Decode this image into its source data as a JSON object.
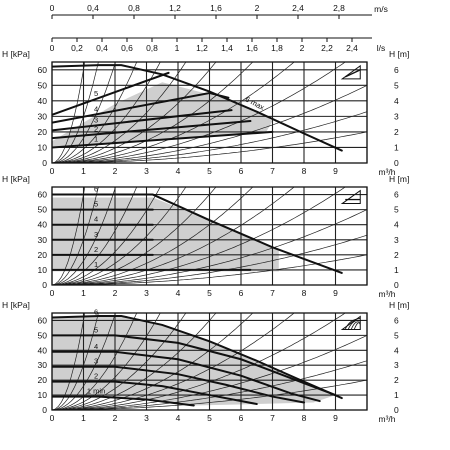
{
  "chart_data": [
    {
      "type": "line",
      "panel": "top",
      "title": "",
      "mode_icon": "proportional-pressure-icon",
      "xlabel": "m³/h",
      "ylabel_left": "H [kPa]",
      "ylabel_right": "H [m]",
      "top_axis_1_label": "m/s",
      "top_axis_1_ticks": [
        "0",
        "0,4",
        "0,8",
        "1,2",
        "1,6",
        "2",
        "2,4",
        "2,8"
      ],
      "top_axis_2_label": "l/s",
      "top_axis_2_ticks": [
        "0",
        "0,2",
        "0,4",
        "0,6",
        "0,8",
        "1",
        "1,2",
        "1,4",
        "1,6",
        "1,8",
        "2",
        "2,2",
        "2,4"
      ],
      "x_ticks": [
        "0",
        "1",
        "2",
        "3",
        "4",
        "5",
        "6",
        "7",
        "8",
        "9"
      ],
      "y_left_ticks": [
        "0",
        "10",
        "20",
        "30",
        "40",
        "50",
        "60"
      ],
      "y_right_ticks": [
        "0",
        "1",
        "2",
        "3",
        "4",
        "5",
        "6"
      ],
      "xlim": [
        0,
        10
      ],
      "ylim": [
        0,
        65
      ],
      "grid": true,
      "series": [
        {
          "name": "6 max",
          "x": [
            0,
            1.5,
            2.2,
            3.5,
            5,
            6.5,
            8,
            9.2
          ],
          "y": [
            62,
            63,
            63,
            57,
            46,
            33,
            19,
            8
          ]
        },
        {
          "name": "5",
          "x": [
            0,
            3.7
          ],
          "y": [
            31,
            58
          ]
        },
        {
          "name": "4",
          "x": [
            0,
            5,
            5.6
          ],
          "y": [
            26,
            45,
            42
          ]
        },
        {
          "name": "3",
          "x": [
            0,
            5.7
          ],
          "y": [
            21,
            34
          ]
        },
        {
          "name": "2",
          "x": [
            0,
            6.3
          ],
          "y": [
            16,
            27
          ]
        },
        {
          "name": "1",
          "x": [
            0,
            7
          ],
          "y": [
            10,
            20
          ]
        }
      ],
      "shaded_region": {
        "x": [
          0,
          2,
          3.5,
          5.6,
          6.8,
          7,
          6.8,
          1.5,
          0
        ],
        "y": [
          14,
          38,
          52,
          41,
          30,
          27,
          20,
          12,
          10
        ]
      }
    },
    {
      "type": "line",
      "panel": "middle",
      "title": "",
      "mode_icon": "constant-pressure-icon",
      "xlabel": "m³/h",
      "ylabel_left": "H [kPa]",
      "ylabel_right": "H [m]",
      "x_ticks": [
        "0",
        "1",
        "2",
        "3",
        "4",
        "5",
        "6",
        "7",
        "8",
        "9"
      ],
      "y_left_ticks": [
        "0",
        "10",
        "20",
        "30",
        "40",
        "50",
        "60"
      ],
      "y_right_ticks": [
        "0",
        "1",
        "2",
        "3",
        "4",
        "5",
        "6"
      ],
      "xlim": [
        0,
        10
      ],
      "ylim": [
        0,
        65
      ],
      "grid": true,
      "series": [
        {
          "name": "6",
          "x": [
            0,
            3.2,
            5,
            7,
            9.2
          ],
          "y": [
            60,
            60,
            43,
            25,
            8
          ]
        },
        {
          "name": "5",
          "x": [
            0,
            3.2
          ],
          "y": [
            50,
            50
          ]
        },
        {
          "name": "4",
          "x": [
            0,
            3.2
          ],
          "y": [
            40,
            40
          ]
        },
        {
          "name": "3",
          "x": [
            0,
            3.2
          ],
          "y": [
            30,
            30
          ]
        },
        {
          "name": "2",
          "x": [
            0,
            3.2
          ],
          "y": [
            20,
            20
          ]
        },
        {
          "name": "1",
          "x": [
            0,
            6.3
          ],
          "y": [
            10,
            10
          ]
        }
      ],
      "shaded_region": {
        "x": [
          0,
          3.2,
          5,
          7.2,
          7.2,
          0
        ],
        "y": [
          58,
          58,
          43,
          23,
          9,
          9
        ]
      }
    },
    {
      "type": "line",
      "panel": "bottom",
      "title": "",
      "mode_icon": "constant-speed-icon",
      "xlabel": "m³/h",
      "ylabel_left": "H [kPa]",
      "ylabel_right": "H [m]",
      "x_ticks": [
        "0",
        "1",
        "2",
        "3",
        "4",
        "5",
        "6",
        "7",
        "8",
        "9"
      ],
      "y_left_ticks": [
        "0",
        "10",
        "20",
        "30",
        "40",
        "50",
        "60"
      ],
      "y_right_ticks": [
        "0",
        "1",
        "2",
        "3",
        "4",
        "5",
        "6"
      ],
      "xlim": [
        0,
        10
      ],
      "ylim": [
        0,
        65
      ],
      "grid": true,
      "series": [
        {
          "name": "6",
          "x": [
            0,
            1.5,
            2.2,
            3.5,
            5,
            6.5,
            8,
            9.2
          ],
          "y": [
            62,
            63,
            63,
            57,
            46,
            33,
            19,
            8
          ]
        },
        {
          "name": "5",
          "x": [
            0,
            2,
            4,
            6,
            8,
            9
          ],
          "y": [
            50,
            50,
            45,
            34,
            18,
            10
          ]
        },
        {
          "name": "4",
          "x": [
            0,
            2,
            4,
            6,
            7.6,
            8.5
          ],
          "y": [
            39,
            39,
            34,
            23,
            11,
            6
          ]
        },
        {
          "name": "3",
          "x": [
            0,
            2,
            4,
            5.5,
            7,
            8
          ],
          "y": [
            29,
            29,
            24,
            17,
            9,
            5
          ]
        },
        {
          "name": "2",
          "x": [
            0,
            2,
            3.5,
            5,
            6.5
          ],
          "y": [
            19,
            19,
            16,
            10,
            4
          ]
        },
        {
          "name": "1 min",
          "x": [
            0,
            1.5,
            3,
            4.5
          ],
          "y": [
            9,
            9,
            7,
            3
          ]
        }
      ],
      "shaded_region": {
        "x": [
          0,
          2,
          3.5,
          5,
          6.5,
          8,
          9,
          8.3,
          6.5,
          4.5,
          3,
          1.5,
          0
        ],
        "y": [
          62,
          63,
          57,
          46,
          33,
          19,
          10,
          5,
          4,
          3,
          7,
          9,
          9
        ]
      }
    }
  ]
}
